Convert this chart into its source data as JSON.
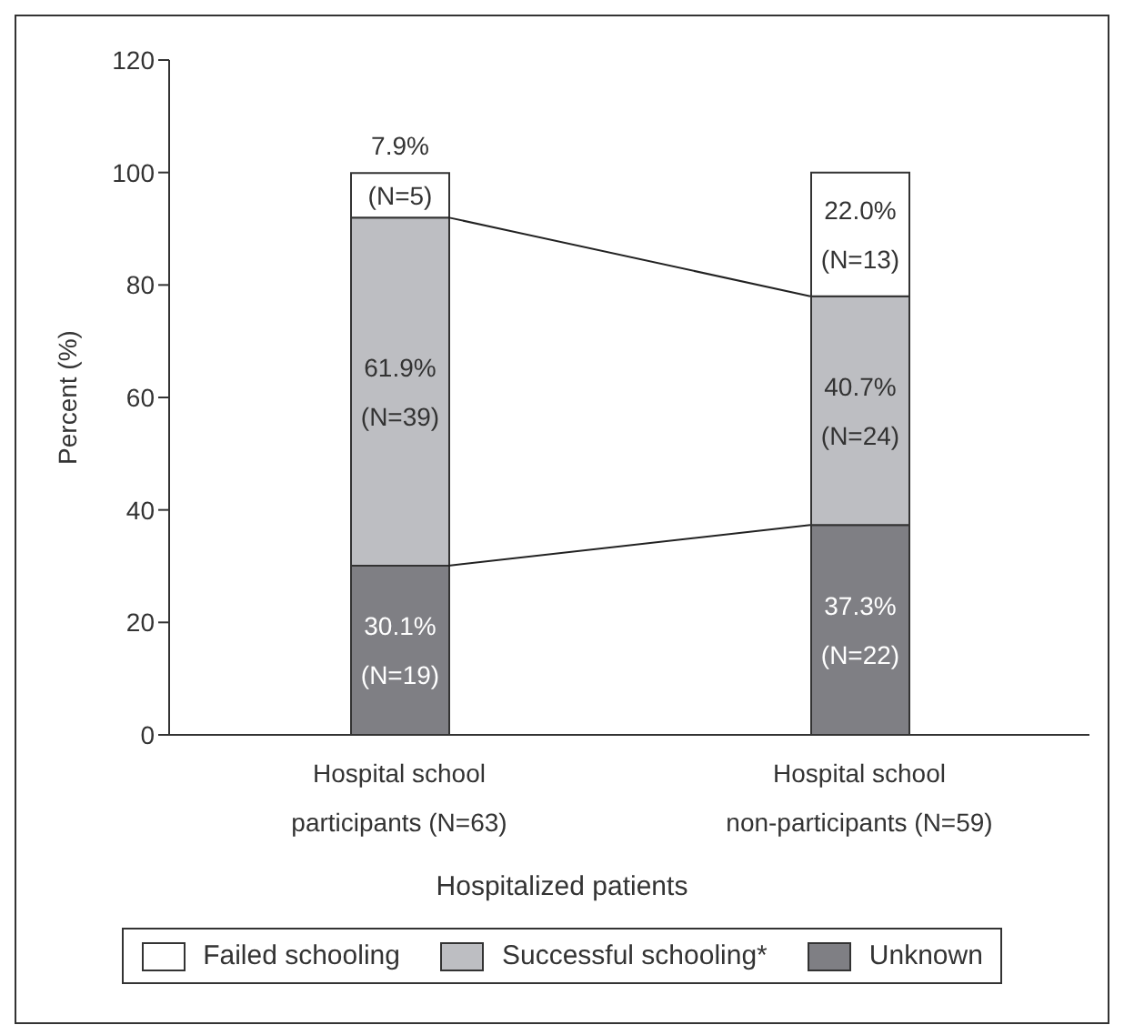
{
  "chart_data": {
    "type": "bar",
    "stacked": true,
    "xlabel": "Hospitalized patients",
    "ylabel": "Percent (%)",
    "categories": [
      "Hospital school participants (N=63)",
      "Hospital school non-participants (N=59)"
    ],
    "series": [
      {
        "name": "Unknown",
        "color": "#7f7f84",
        "values": [
          30.1,
          37.3
        ],
        "value_labels": [
          "30.1% (N=19)",
          "37.3% (N=22)"
        ]
      },
      {
        "name": "Successful schooling*",
        "color": "#bdbec2",
        "values": [
          61.9,
          40.7
        ],
        "value_labels": [
          "61.9% (N=39)",
          "40.7% (N=24)"
        ]
      },
      {
        "name": "Failed schooling",
        "color": "#ffffff",
        "values": [
          7.9,
          22.0
        ],
        "value_labels": [
          "7.9% (N=5)",
          "22.0% (N=13)"
        ]
      }
    ],
    "ylim": [
      0,
      120
    ],
    "yticks": [
      0,
      20,
      40,
      60,
      80,
      100,
      120
    ],
    "grid": false,
    "legend": "bottom"
  }
}
